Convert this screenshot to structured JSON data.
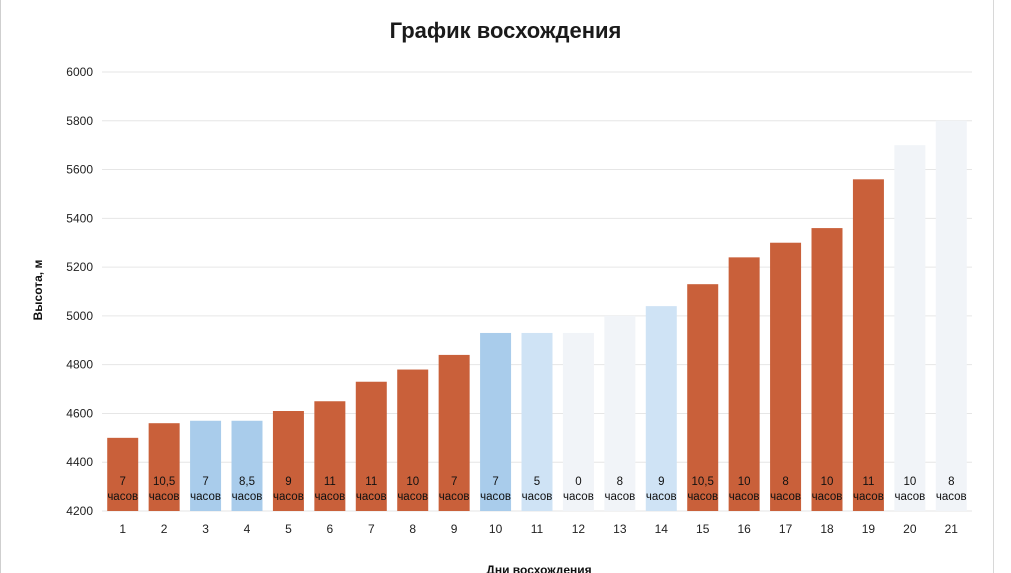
{
  "chart_data": {
    "type": "bar",
    "title": "График восхождения",
    "xlabel": "Дни восхождения",
    "ylabel": "Высота, м",
    "ylim": [
      4200,
      6000
    ],
    "yticks": [
      4200,
      4400,
      4600,
      4800,
      5000,
      5200,
      5400,
      5600,
      5800,
      6000
    ],
    "grid": true,
    "legend": "none",
    "categories": [
      "1",
      "2",
      "3",
      "4",
      "5",
      "6",
      "7",
      "8",
      "9",
      "10",
      "11",
      "12",
      "13",
      "14",
      "15",
      "16",
      "17",
      "18",
      "19",
      "20",
      "21"
    ],
    "values": [
      4500,
      4560,
      4570,
      4570,
      4610,
      4650,
      4730,
      4780,
      4840,
      4930,
      4930,
      4930,
      5000,
      5040,
      5130,
      5240,
      5300,
      5360,
      5560,
      5700,
      5800
    ],
    "hours_labels": [
      "7",
      "10,5",
      "7",
      "8,5",
      "9",
      "11",
      "11",
      "10",
      "7",
      "7",
      "5",
      "0",
      "8",
      "9",
      "10,5",
      "10",
      "8",
      "10",
      "11",
      "10",
      "8"
    ],
    "hours_unit": "часов",
    "bar_styles": [
      "solid",
      "solid",
      "blue",
      "blue",
      "solid",
      "solid",
      "solid",
      "solid",
      "solid",
      "blue",
      "lightblue",
      "pale",
      "pale",
      "lightblue",
      "solid",
      "solid",
      "solid",
      "solid",
      "solid",
      "pale",
      "pale"
    ],
    "colors": {
      "solid": "#c9603a",
      "blue": "#a9cceb",
      "lightblue": "#cfe3f5",
      "pale": "#f1f4f8",
      "grid": "#e6e6e6"
    }
  }
}
